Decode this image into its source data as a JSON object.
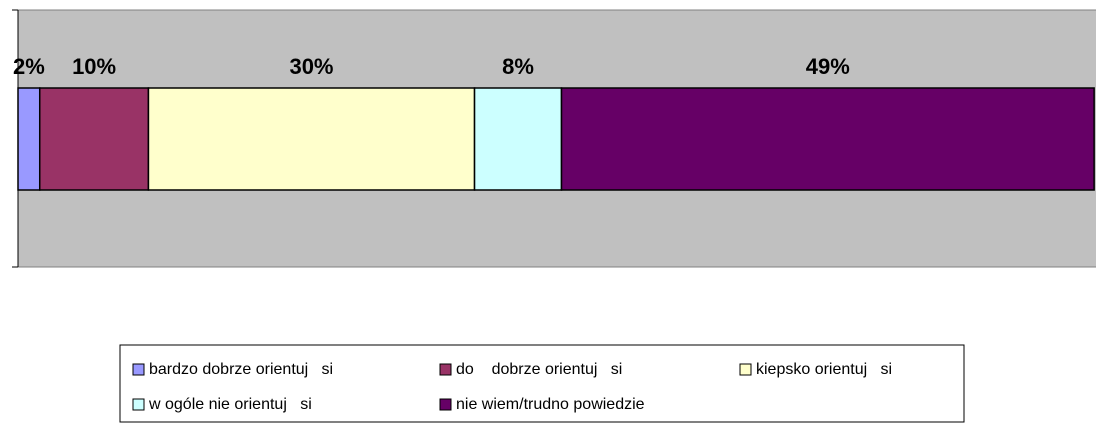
{
  "chart_data": {
    "type": "stacked-bar-horizontal",
    "xlim": [
      0,
      100
    ],
    "series": [
      {
        "name": "bardzo dobrze orientuj   si",
        "color": "#9999ff",
        "values": [
          2
        ],
        "value_labels": [
          "2%"
        ]
      },
      {
        "name": "do    dobrze orientuj   si",
        "color": "#993366",
        "values": [
          10
        ],
        "value_labels": [
          "10%"
        ]
      },
      {
        "name": "kiepsko orientuj   si",
        "color": "#ffffcc",
        "values": [
          30
        ],
        "value_labels": [
          "30%"
        ]
      },
      {
        "name": "w ogóle nie orientuj   si",
        "color": "#ccffff",
        "values": [
          8
        ],
        "value_labels": [
          "8%"
        ]
      },
      {
        "name": "nie wiem/trudno powiedzie",
        "color": "#660066",
        "values": [
          49
        ],
        "value_labels": [
          "49%"
        ]
      }
    ]
  }
}
